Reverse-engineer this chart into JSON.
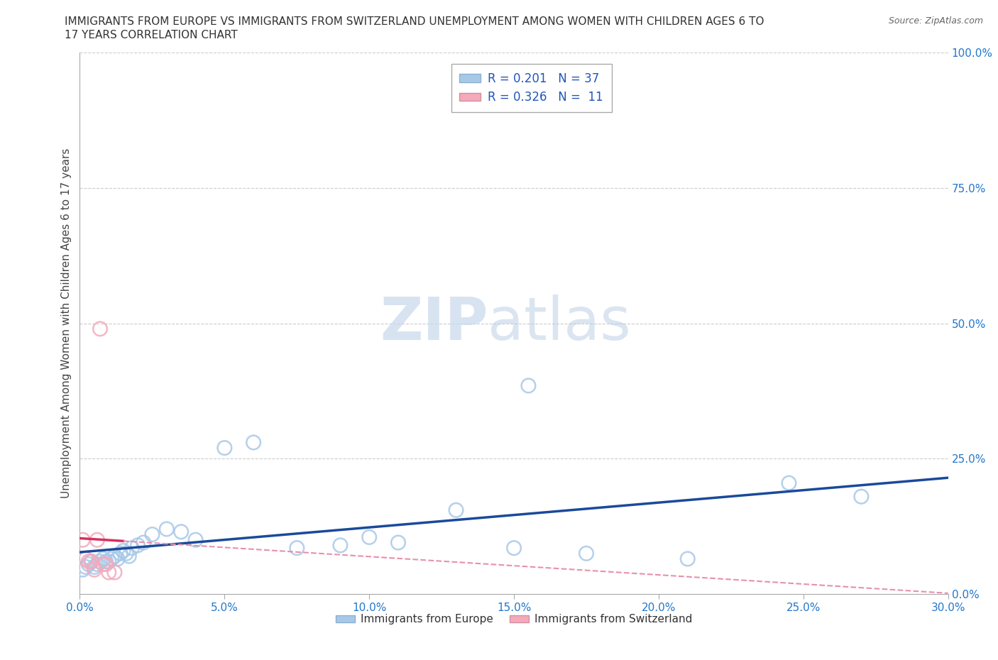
{
  "title_line1": "IMMIGRANTS FROM EUROPE VS IMMIGRANTS FROM SWITZERLAND UNEMPLOYMENT AMONG WOMEN WITH CHILDREN AGES 6 TO",
  "title_line2": "17 YEARS CORRELATION CHART",
  "source": "Source: ZipAtlas.com",
  "ylabel": "Unemployment Among Women with Children Ages 6 to 17 years",
  "legend_bottom": [
    "Immigrants from Europe",
    "Immigrants from Switzerland"
  ],
  "r_europe": 0.201,
  "n_europe": 37,
  "r_swiss": 0.326,
  "n_swiss": 11,
  "blue_scatter_color": "#a8c8e8",
  "pink_scatter_color": "#f4aabb",
  "blue_line_color": "#1a4a9a",
  "pink_line_color": "#d63060",
  "pink_dash_color": "#e890aa",
  "watermark_zip": "ZIP",
  "watermark_atlas": "atlas",
  "europe_x": [
    0.001,
    0.002,
    0.003,
    0.004,
    0.005,
    0.006,
    0.007,
    0.008,
    0.009,
    0.01,
    0.011,
    0.012,
    0.013,
    0.014,
    0.015,
    0.016,
    0.017,
    0.018,
    0.02,
    0.022,
    0.025,
    0.03,
    0.035,
    0.04,
    0.05,
    0.06,
    0.075,
    0.09,
    0.1,
    0.11,
    0.13,
    0.15,
    0.155,
    0.175,
    0.21,
    0.245,
    0.27
  ],
  "europe_y": [
    0.045,
    0.05,
    0.055,
    0.06,
    0.05,
    0.055,
    0.06,
    0.065,
    0.06,
    0.06,
    0.065,
    0.07,
    0.065,
    0.075,
    0.08,
    0.075,
    0.07,
    0.085,
    0.09,
    0.095,
    0.11,
    0.12,
    0.115,
    0.1,
    0.27,
    0.28,
    0.085,
    0.09,
    0.105,
    0.095,
    0.155,
    0.085,
    0.385,
    0.075,
    0.065,
    0.205,
    0.18
  ],
  "swiss_x": [
    0.001,
    0.002,
    0.003,
    0.004,
    0.005,
    0.006,
    0.007,
    0.008,
    0.009,
    0.01,
    0.012
  ],
  "swiss_y": [
    0.1,
    0.065,
    0.06,
    0.06,
    0.045,
    0.1,
    0.49,
    0.055,
    0.055,
    0.04,
    0.04
  ],
  "xlim": [
    0.0,
    0.3
  ],
  "ylim": [
    0.0,
    1.0
  ],
  "xticks": [
    0.0,
    0.05,
    0.1,
    0.15,
    0.2,
    0.25,
    0.3
  ],
  "yticks_right": [
    0.0,
    0.25,
    0.5,
    0.75,
    1.0
  ],
  "ytick_labels_right": [
    "0.0%",
    "25.0%",
    "50.0%",
    "75.0%",
    "100.0%"
  ],
  "xtick_labels": [
    "0.0%",
    "5.0%",
    "10.0%",
    "15.0%",
    "20.0%",
    "25.0%",
    "30.0%"
  ]
}
